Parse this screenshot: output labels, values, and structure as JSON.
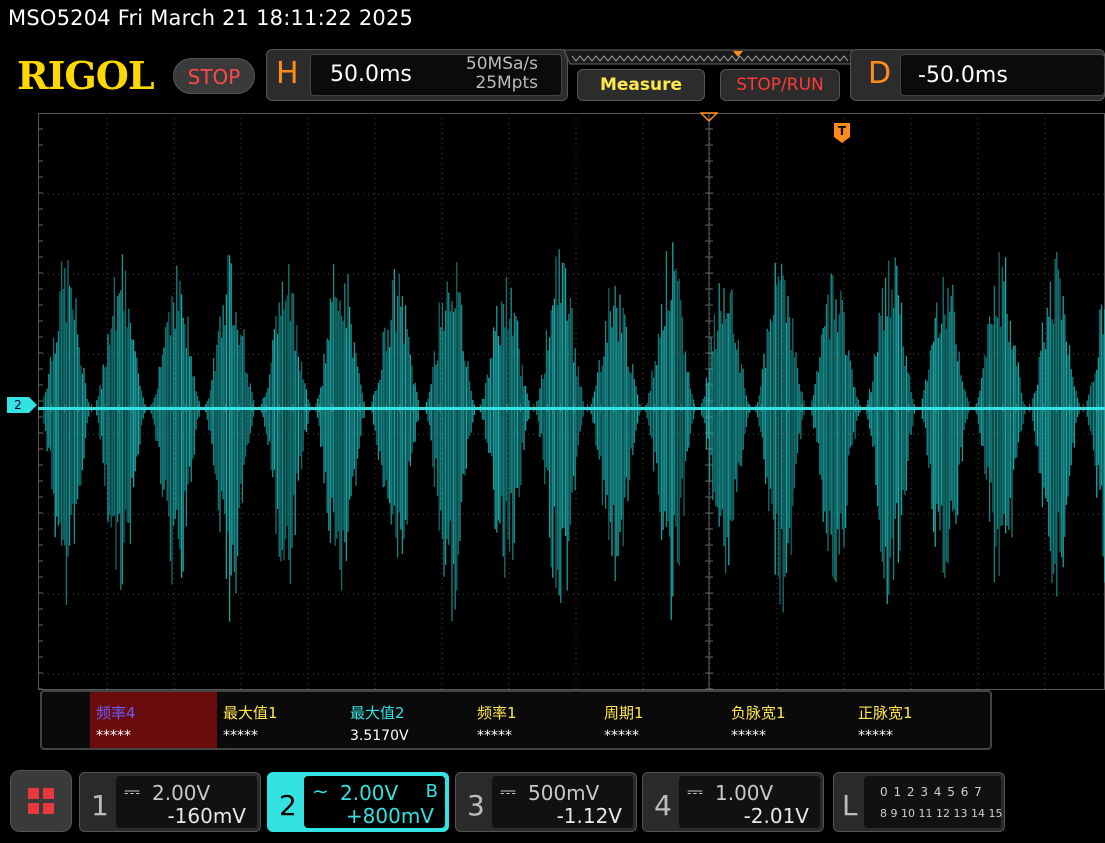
{
  "title": "MSO5204  Fri March 21 18:11:22 2025",
  "brand": "RIGOL",
  "run_state": "STOP",
  "horizontal": {
    "letter": "H",
    "scale": "50.0ms",
    "sample_rate": "50MSa/s",
    "memory_depth": "25Mpts"
  },
  "buttons": {
    "measure": "Measure",
    "stop_run": "STOP/RUN"
  },
  "delay": {
    "letter": "D",
    "value": "-50.0ms"
  },
  "channel_marker": "2",
  "trigger_marker": "T",
  "colors": {
    "channel2": "#35e2e2",
    "trace": "#1fb5b5",
    "orange": "#ff8c1a",
    "yellow": "#ffe94a"
  },
  "measurements": [
    {
      "name": "频率4",
      "value": "*****",
      "color": "#6a5cff",
      "highlight": true
    },
    {
      "name": "最大值1",
      "value": "*****",
      "color": "#ffe94a"
    },
    {
      "name": "最大值2",
      "value": "3.5170V",
      "color": "#35e2e2"
    },
    {
      "name": "频率1",
      "value": "*****",
      "color": "#ffe94a"
    },
    {
      "name": "周期1",
      "value": "*****",
      "color": "#ffe94a"
    },
    {
      "name": "负脉宽1",
      "value": "*****",
      "color": "#ffe94a"
    },
    {
      "name": "正脉宽1",
      "value": "*****",
      "color": "#ffe94a"
    }
  ],
  "channels": [
    {
      "num": "1",
      "scale": "2.00V",
      "offset": "-160mV",
      "coupling_icon": "dc-coupling-icon",
      "active": false
    },
    {
      "num": "2",
      "scale": "2.00V",
      "offset": "+800mV",
      "coupling_icon": "ac-coupling-icon",
      "active": true,
      "bw_limit": "B"
    },
    {
      "num": "3",
      "scale": "500mV",
      "offset": "-1.12V",
      "coupling_icon": "dc-coupling-icon",
      "active": false
    },
    {
      "num": "4",
      "scale": "1.00V",
      "offset": "-2.01V",
      "coupling_icon": "dc-coupling-icon",
      "active": false
    }
  ],
  "logic": {
    "letter": "L",
    "row1": "0 1 2 3  4 5 6 7",
    "row2": "8 9 10 11 12 13 14 15"
  }
}
